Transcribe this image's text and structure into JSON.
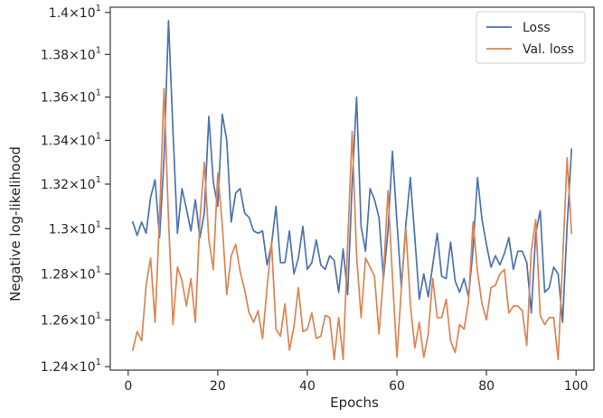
{
  "chart_data": {
    "type": "line",
    "title": "",
    "xlabel": "Epochs",
    "ylabel": "Negative log-likelihood",
    "xlim": [
      -4,
      104
    ],
    "ylim": [
      12.385,
      14.025
    ],
    "yscale": "log",
    "grid": false,
    "legend_position": "top-right",
    "x_ticks": [
      0,
      20,
      40,
      60,
      80,
      100
    ],
    "x_tick_labels": [
      "0",
      "20",
      "40",
      "60",
      "80",
      "100"
    ],
    "y_ticks": [
      12.4,
      12.6,
      12.8,
      13.0,
      13.2,
      13.4,
      13.6,
      13.8,
      14.0
    ],
    "y_tick_labels": [
      {
        "mant": "1.24",
        "base": "10",
        "exp": "1"
      },
      {
        "mant": "1.26",
        "base": "10",
        "exp": "1"
      },
      {
        "mant": "1.28",
        "base": "10",
        "exp": "1"
      },
      {
        "mant": "1.3",
        "base": "10",
        "exp": "1"
      },
      {
        "mant": "1.32",
        "base": "10",
        "exp": "1"
      },
      {
        "mant": "1.34",
        "base": "10",
        "exp": "1"
      },
      {
        "mant": "1.36",
        "base": "10",
        "exp": "1"
      },
      {
        "mant": "1.38",
        "base": "10",
        "exp": "1"
      },
      {
        "mant": "1.4",
        "base": "10",
        "exp": "1"
      }
    ],
    "x": [
      1,
      2,
      3,
      4,
      5,
      6,
      7,
      8,
      9,
      10,
      11,
      12,
      13,
      14,
      15,
      16,
      17,
      18,
      19,
      20,
      21,
      22,
      23,
      24,
      25,
      26,
      27,
      28,
      29,
      30,
      31,
      32,
      33,
      34,
      35,
      36,
      37,
      38,
      39,
      40,
      41,
      42,
      43,
      44,
      45,
      46,
      47,
      48,
      49,
      50,
      51,
      52,
      53,
      54,
      55,
      56,
      57,
      58,
      59,
      60,
      61,
      62,
      63,
      64,
      65,
      66,
      67,
      68,
      69,
      70,
      71,
      72,
      73,
      74,
      75,
      76,
      77,
      78,
      79,
      80,
      81,
      82,
      83,
      84,
      85,
      86,
      87,
      88,
      89,
      90,
      91,
      92,
      93,
      94,
      95,
      96,
      97,
      98,
      99
    ],
    "series": [
      {
        "name": "Loss",
        "color": "#4c72b0",
        "values": [
          13.03,
          12.97,
          13.03,
          12.98,
          13.14,
          13.22,
          12.96,
          13.32,
          13.96,
          13.44,
          12.98,
          13.18,
          13.09,
          12.99,
          13.13,
          12.96,
          13.07,
          13.51,
          13.21,
          13.1,
          13.52,
          13.4,
          13.03,
          13.16,
          13.18,
          13.07,
          13.05,
          12.99,
          12.98,
          12.99,
          12.84,
          12.93,
          13.1,
          12.85,
          12.85,
          12.99,
          12.8,
          12.87,
          13.01,
          12.82,
          12.85,
          12.95,
          12.84,
          12.82,
          12.88,
          12.86,
          12.72,
          12.91,
          12.71,
          13.2,
          13.6,
          13.01,
          12.9,
          13.18,
          13.13,
          13.05,
          12.78,
          12.99,
          13.35,
          13.03,
          12.74,
          13.02,
          13.23,
          12.96,
          12.69,
          12.8,
          12.7,
          12.84,
          12.98,
          12.79,
          12.78,
          12.94,
          12.77,
          12.72,
          12.78,
          12.7,
          12.91,
          13.23,
          13.04,
          12.93,
          12.83,
          12.88,
          12.84,
          12.89,
          12.96,
          12.82,
          12.9,
          12.9,
          12.85,
          12.63,
          12.98,
          13.08,
          12.72,
          12.74,
          12.83,
          12.8,
          12.59,
          13.01,
          13.36
        ]
      },
      {
        "name": "Val. loss",
        "color": "#dd8452",
        "values": [
          12.47,
          12.55,
          12.51,
          12.75,
          12.87,
          12.59,
          13.05,
          13.64,
          13.04,
          12.58,
          12.83,
          12.77,
          12.66,
          12.78,
          12.59,
          13.04,
          13.3,
          12.95,
          12.82,
          13.25,
          13.02,
          12.71,
          12.88,
          12.93,
          12.81,
          12.73,
          12.63,
          12.59,
          12.64,
          12.52,
          12.74,
          12.94,
          12.56,
          12.53,
          12.67,
          12.47,
          12.57,
          12.74,
          12.55,
          12.56,
          12.63,
          12.52,
          12.53,
          12.62,
          12.61,
          12.43,
          12.61,
          12.43,
          12.93,
          13.44,
          12.88,
          12.61,
          12.87,
          12.83,
          12.79,
          12.54,
          12.79,
          13.17,
          12.79,
          12.44,
          12.74,
          13.0,
          12.67,
          12.48,
          12.59,
          12.44,
          12.54,
          12.78,
          12.61,
          12.61,
          12.69,
          12.51,
          12.46,
          12.58,
          12.56,
          12.68,
          13.03,
          12.81,
          12.67,
          12.6,
          12.74,
          12.75,
          12.8,
          12.82,
          12.63,
          12.66,
          12.66,
          12.64,
          12.49,
          12.9,
          13.04,
          12.62,
          12.58,
          12.61,
          12.61,
          12.43,
          12.85,
          13.32,
          12.98
        ]
      }
    ]
  }
}
